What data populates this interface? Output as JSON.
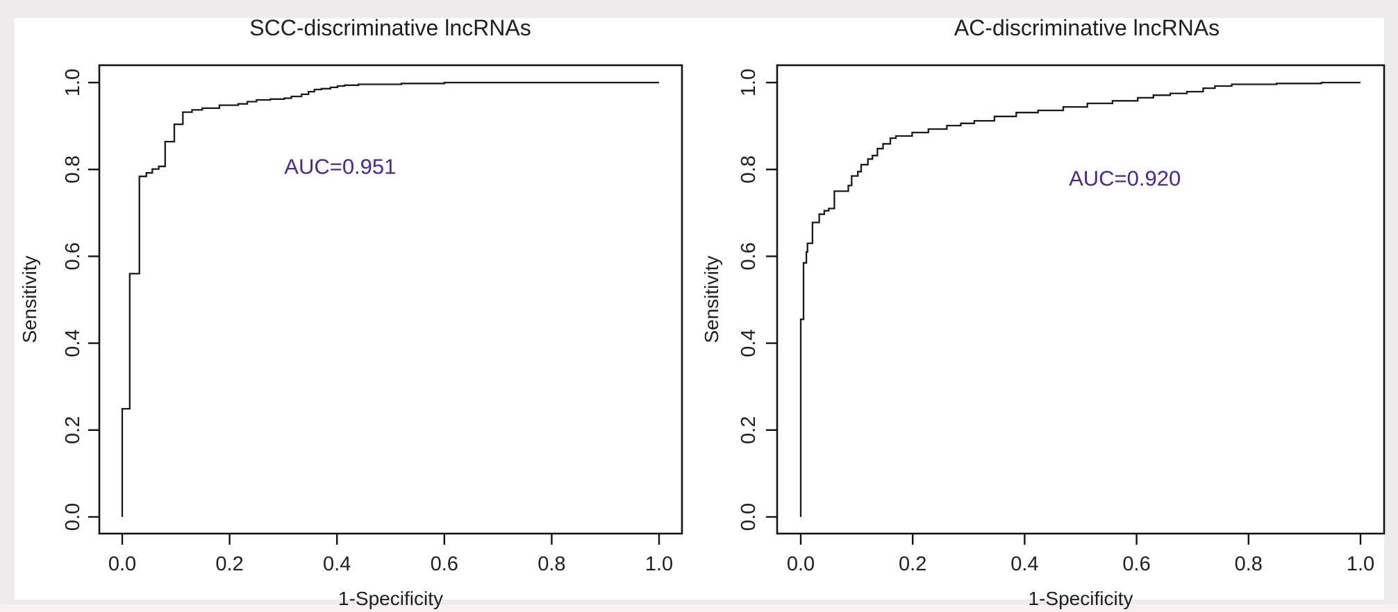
{
  "figure": {
    "background": "#edebec",
    "canvas_background": "#ffffff",
    "bottom_strip_color": "#f9f1f0",
    "axis_color": "#141414",
    "text_color": "#1f1f1f"
  },
  "chart_data": [
    {
      "type": "line",
      "subtype": "roc-curve",
      "title": "SCC-discriminative lncRNAs",
      "xlabel": "1-Specificity",
      "ylabel": "Sensitivity",
      "xlim": [
        0,
        1
      ],
      "ylim": [
        0,
        1
      ],
      "xticks": [
        0.0,
        0.2,
        0.4,
        0.6,
        0.8,
        1.0
      ],
      "yticks": [
        0.0,
        0.2,
        0.4,
        0.6,
        0.8,
        1.0
      ],
      "grid": false,
      "legend": "none",
      "line_color": "#1a1a1a",
      "annotation": {
        "label": "AUC=0.951",
        "value": 0.951,
        "color": "#46289c",
        "x": 0.406,
        "y": 0.807
      },
      "roc_points": [
        [
          0.0,
          0.0
        ],
        [
          0.0,
          0.249
        ],
        [
          0.014,
          0.249
        ],
        [
          0.014,
          0.56
        ],
        [
          0.032,
          0.56
        ],
        [
          0.032,
          0.784
        ],
        [
          0.045,
          0.784
        ],
        [
          0.045,
          0.792
        ],
        [
          0.056,
          0.792
        ],
        [
          0.056,
          0.801
        ],
        [
          0.068,
          0.801
        ],
        [
          0.068,
          0.807
        ],
        [
          0.08,
          0.807
        ],
        [
          0.08,
          0.864
        ],
        [
          0.097,
          0.864
        ],
        [
          0.097,
          0.904
        ],
        [
          0.113,
          0.904
        ],
        [
          0.113,
          0.932
        ],
        [
          0.13,
          0.932
        ],
        [
          0.13,
          0.937
        ],
        [
          0.149,
          0.937
        ],
        [
          0.149,
          0.941
        ],
        [
          0.181,
          0.941
        ],
        [
          0.181,
          0.948
        ],
        [
          0.216,
          0.948
        ],
        [
          0.216,
          0.951
        ],
        [
          0.233,
          0.951
        ],
        [
          0.233,
          0.956
        ],
        [
          0.25,
          0.956
        ],
        [
          0.25,
          0.96
        ],
        [
          0.276,
          0.96
        ],
        [
          0.276,
          0.962
        ],
        [
          0.302,
          0.962
        ],
        [
          0.302,
          0.964
        ],
        [
          0.315,
          0.964
        ],
        [
          0.315,
          0.968
        ],
        [
          0.334,
          0.968
        ],
        [
          0.334,
          0.973
        ],
        [
          0.347,
          0.973
        ],
        [
          0.347,
          0.979
        ],
        [
          0.358,
          0.979
        ],
        [
          0.358,
          0.984
        ],
        [
          0.371,
          0.984
        ],
        [
          0.371,
          0.986
        ],
        [
          0.388,
          0.986
        ],
        [
          0.388,
          0.989
        ],
        [
          0.401,
          0.989
        ],
        [
          0.401,
          0.992
        ],
        [
          0.414,
          0.992
        ],
        [
          0.414,
          0.994
        ],
        [
          0.44,
          0.994
        ],
        [
          0.44,
          0.996
        ],
        [
          0.52,
          0.996
        ],
        [
          0.52,
          0.998
        ],
        [
          0.6,
          0.998
        ],
        [
          0.6,
          1.0
        ],
        [
          1.0,
          1.0
        ]
      ]
    },
    {
      "type": "line",
      "subtype": "roc-curve",
      "title": "AC-discriminative lncRNAs",
      "xlabel": "1-Specificity",
      "ylabel": "Sensitivity",
      "xlim": [
        0,
        1
      ],
      "ylim": [
        0,
        1
      ],
      "xticks": [
        0.0,
        0.2,
        0.4,
        0.6,
        0.8,
        1.0
      ],
      "yticks": [
        0.0,
        0.2,
        0.4,
        0.6,
        0.8,
        1.0
      ],
      "grid": false,
      "legend": "none",
      "line_color": "#1a1a1a",
      "annotation": {
        "label": "AUC=0.920",
        "value": 0.92,
        "color": "#46289c",
        "x": 0.579,
        "y": 0.78
      },
      "roc_points": [
        [
          0.0,
          0.0
        ],
        [
          0.0,
          0.455
        ],
        [
          0.005,
          0.455
        ],
        [
          0.005,
          0.585
        ],
        [
          0.01,
          0.585
        ],
        [
          0.01,
          0.61
        ],
        [
          0.012,
          0.61
        ],
        [
          0.012,
          0.63
        ],
        [
          0.021,
          0.63
        ],
        [
          0.021,
          0.678
        ],
        [
          0.033,
          0.678
        ],
        [
          0.033,
          0.697
        ],
        [
          0.042,
          0.697
        ],
        [
          0.042,
          0.705
        ],
        [
          0.05,
          0.705
        ],
        [
          0.05,
          0.71
        ],
        [
          0.06,
          0.71
        ],
        [
          0.06,
          0.75
        ],
        [
          0.085,
          0.75
        ],
        [
          0.085,
          0.763
        ],
        [
          0.091,
          0.763
        ],
        [
          0.091,
          0.785
        ],
        [
          0.102,
          0.785
        ],
        [
          0.102,
          0.795
        ],
        [
          0.108,
          0.795
        ],
        [
          0.108,
          0.811
        ],
        [
          0.12,
          0.811
        ],
        [
          0.12,
          0.824
        ],
        [
          0.128,
          0.824
        ],
        [
          0.128,
          0.832
        ],
        [
          0.137,
          0.832
        ],
        [
          0.137,
          0.848
        ],
        [
          0.147,
          0.848
        ],
        [
          0.147,
          0.859
        ],
        [
          0.16,
          0.859
        ],
        [
          0.16,
          0.872
        ],
        [
          0.17,
          0.872
        ],
        [
          0.17,
          0.877
        ],
        [
          0.199,
          0.877
        ],
        [
          0.199,
          0.885
        ],
        [
          0.228,
          0.885
        ],
        [
          0.228,
          0.893
        ],
        [
          0.261,
          0.893
        ],
        [
          0.261,
          0.901
        ],
        [
          0.286,
          0.901
        ],
        [
          0.286,
          0.906
        ],
        [
          0.31,
          0.906
        ],
        [
          0.31,
          0.912
        ],
        [
          0.346,
          0.912
        ],
        [
          0.346,
          0.922
        ],
        [
          0.385,
          0.922
        ],
        [
          0.385,
          0.931
        ],
        [
          0.424,
          0.931
        ],
        [
          0.424,
          0.936
        ],
        [
          0.469,
          0.936
        ],
        [
          0.469,
          0.944
        ],
        [
          0.512,
          0.944
        ],
        [
          0.512,
          0.952
        ],
        [
          0.557,
          0.952
        ],
        [
          0.557,
          0.958
        ],
        [
          0.602,
          0.958
        ],
        [
          0.602,
          0.965
        ],
        [
          0.63,
          0.965
        ],
        [
          0.63,
          0.971
        ],
        [
          0.66,
          0.971
        ],
        [
          0.66,
          0.975
        ],
        [
          0.69,
          0.975
        ],
        [
          0.69,
          0.979
        ],
        [
          0.719,
          0.979
        ],
        [
          0.719,
          0.987
        ],
        [
          0.74,
          0.987
        ],
        [
          0.74,
          0.992
        ],
        [
          0.77,
          0.992
        ],
        [
          0.77,
          0.996
        ],
        [
          0.85,
          0.996
        ],
        [
          0.85,
          0.998
        ],
        [
          0.93,
          0.998
        ],
        [
          0.93,
          1.0
        ],
        [
          1.0,
          1.0
        ]
      ]
    }
  ]
}
